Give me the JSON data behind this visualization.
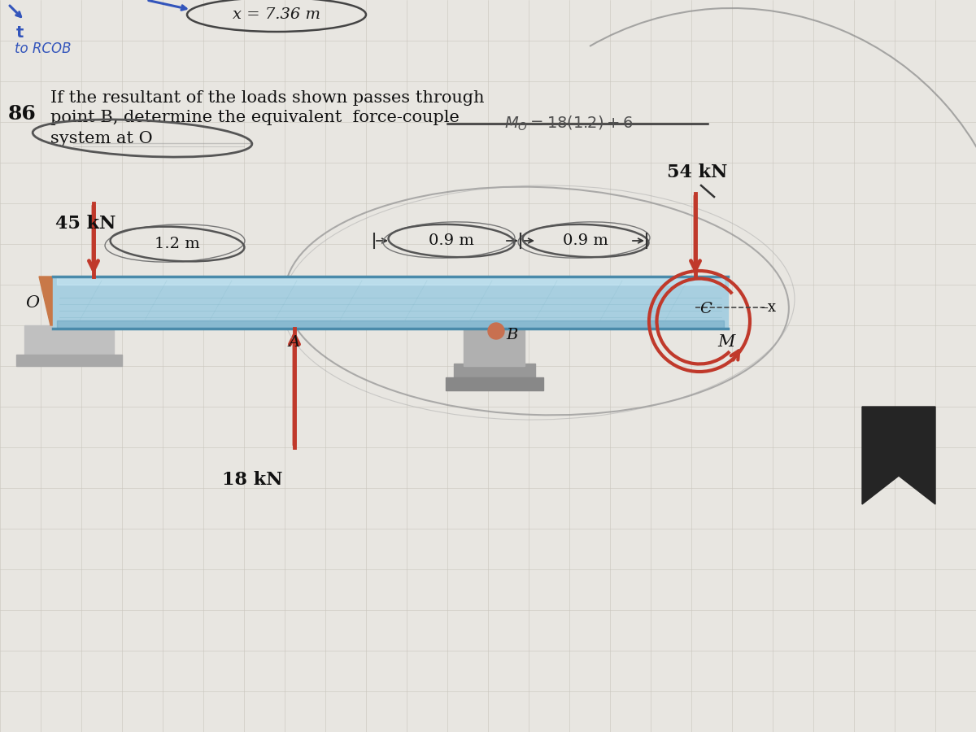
{
  "paper_color": "#e8e6e1",
  "beam_color": "#a8cfe0",
  "beam_color2": "#7eb8d4",
  "beam_dark": "#5a9ab8",
  "arrow_color": "#c0392b",
  "support_orange": "#c87848",
  "support_gray": "#a0a0a0",
  "support_base": "#c8c8c8",
  "circle_red": "#c0392b",
  "dark_bookmark": "#252525",
  "blue_hand": "#3355bb",
  "pencil": "#666666",
  "text_dark": "#111111",
  "force_45": "45 kN",
  "force_54": "54 kN",
  "force_18": "18 kN",
  "dist_12": "1.2 m",
  "dist_09a": "0.9 m",
  "dist_09b": "0.9 m",
  "lbl_O": "O",
  "lbl_A": "A",
  "lbl_B": "B",
  "lbl_C": "C",
  "lbl_M": "M",
  "lbl_x": "–x",
  "cx_text": "x = 7.36 m",
  "prob_num": "86",
  "prob_line1": "If the resultant of the loads shown passes through",
  "prob_line2": "point B, determine the equivalent  force-couple",
  "prob_line3": "system at O",
  "mo_text": "Mo =18(1.2)+6",
  "blue_t": "t",
  "blue_rcob": "to RCOB"
}
